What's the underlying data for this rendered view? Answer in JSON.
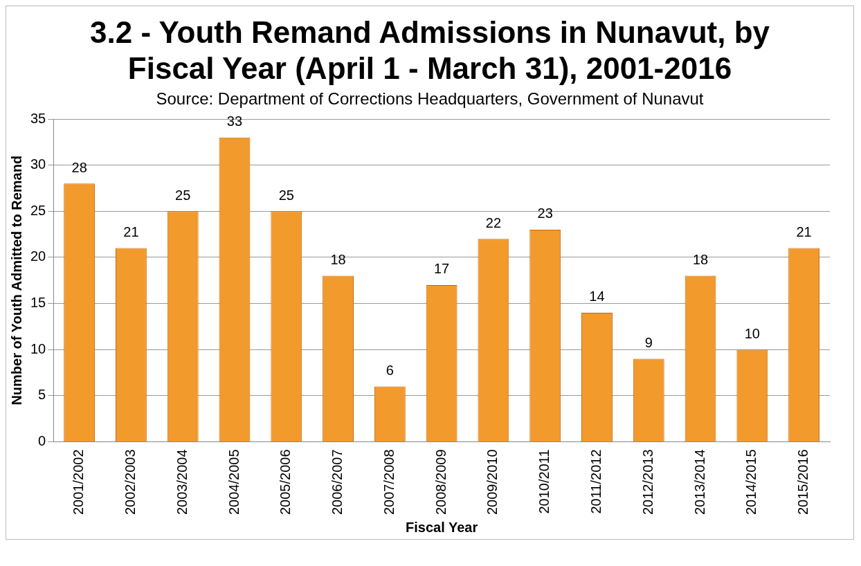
{
  "chart_data": {
    "type": "bar",
    "title": "3.2 - Youth Remand Admissions in Nunavut, by Fiscal Year (April 1 - March 31), 2001-2016",
    "subtitle": "Source: Department of Corrections Headquarters, Government of Nunavut",
    "xlabel": "Fiscal Year",
    "ylabel": "Number of Youth Admitted to Remand",
    "categories": [
      "2001/2002",
      "2002/2003",
      "2003/2004",
      "2004/2005",
      "2005/2006",
      "2006/2007",
      "2007/2008",
      "2008/2009",
      "2009/2010",
      "2010/2011",
      "2011/2012",
      "2012/2013",
      "2013/2014",
      "2014/2015",
      "2015/2016"
    ],
    "values": [
      28,
      21,
      25,
      33,
      25,
      18,
      6,
      17,
      22,
      23,
      14,
      9,
      18,
      10,
      21
    ],
    "color": "#f39a2c",
    "ylim": [
      0,
      35
    ],
    "yticks": [
      0,
      5,
      10,
      15,
      20,
      25,
      30,
      35
    ],
    "grid": "y",
    "data_labels": true,
    "legend": false
  }
}
